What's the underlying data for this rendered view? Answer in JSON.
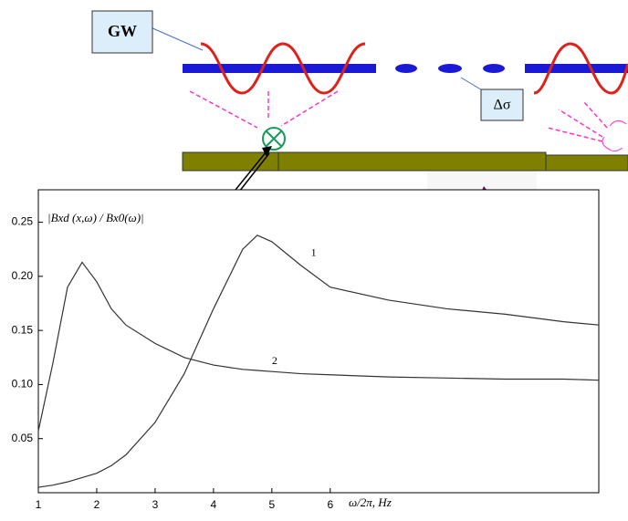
{
  "diagram": {
    "gw_label": "GW",
    "delta_label": "Δσ"
  },
  "chart_data": {
    "type": "line",
    "ylabel": "|Bxd (x,ω) / Bx0(ω)|",
    "xlabel": "ω/2π, Hz",
    "x": [
      1,
      1.25,
      1.5,
      1.75,
      2,
      2.25,
      2.5,
      3,
      3.5,
      4,
      4.5,
      4.75,
      5,
      5.5,
      6,
      7,
      8,
      9,
      10,
      10.6
    ],
    "series": [
      {
        "name": "1",
        "color": "#333333",
        "values": [
          0.005,
          0.007,
          0.01,
          0.014,
          0.018,
          0.025,
          0.035,
          0.065,
          0.11,
          0.17,
          0.225,
          0.238,
          0.232,
          0.21,
          0.19,
          0.178,
          0.17,
          0.165,
          0.158,
          0.155
        ]
      },
      {
        "name": "2",
        "color": "#333333",
        "values": [
          0.057,
          0.12,
          0.19,
          0.213,
          0.195,
          0.17,
          0.155,
          0.138,
          0.125,
          0.118,
          0.114,
          0.113,
          0.112,
          0.11,
          0.109,
          0.107,
          0.106,
          0.105,
          0.105,
          0.104
        ]
      }
    ],
    "xlim": [
      1,
      10.6
    ],
    "ylim": [
      0,
      0.28
    ],
    "xticks": [
      1,
      2,
      3,
      4,
      5,
      6
    ],
    "yticks": [
      0.05,
      {
        "value": 0.1,
        "label": "0.10"
      },
      0.15,
      {
        "value": 0.2,
        "label": "0.20"
      },
      0.25
    ]
  }
}
